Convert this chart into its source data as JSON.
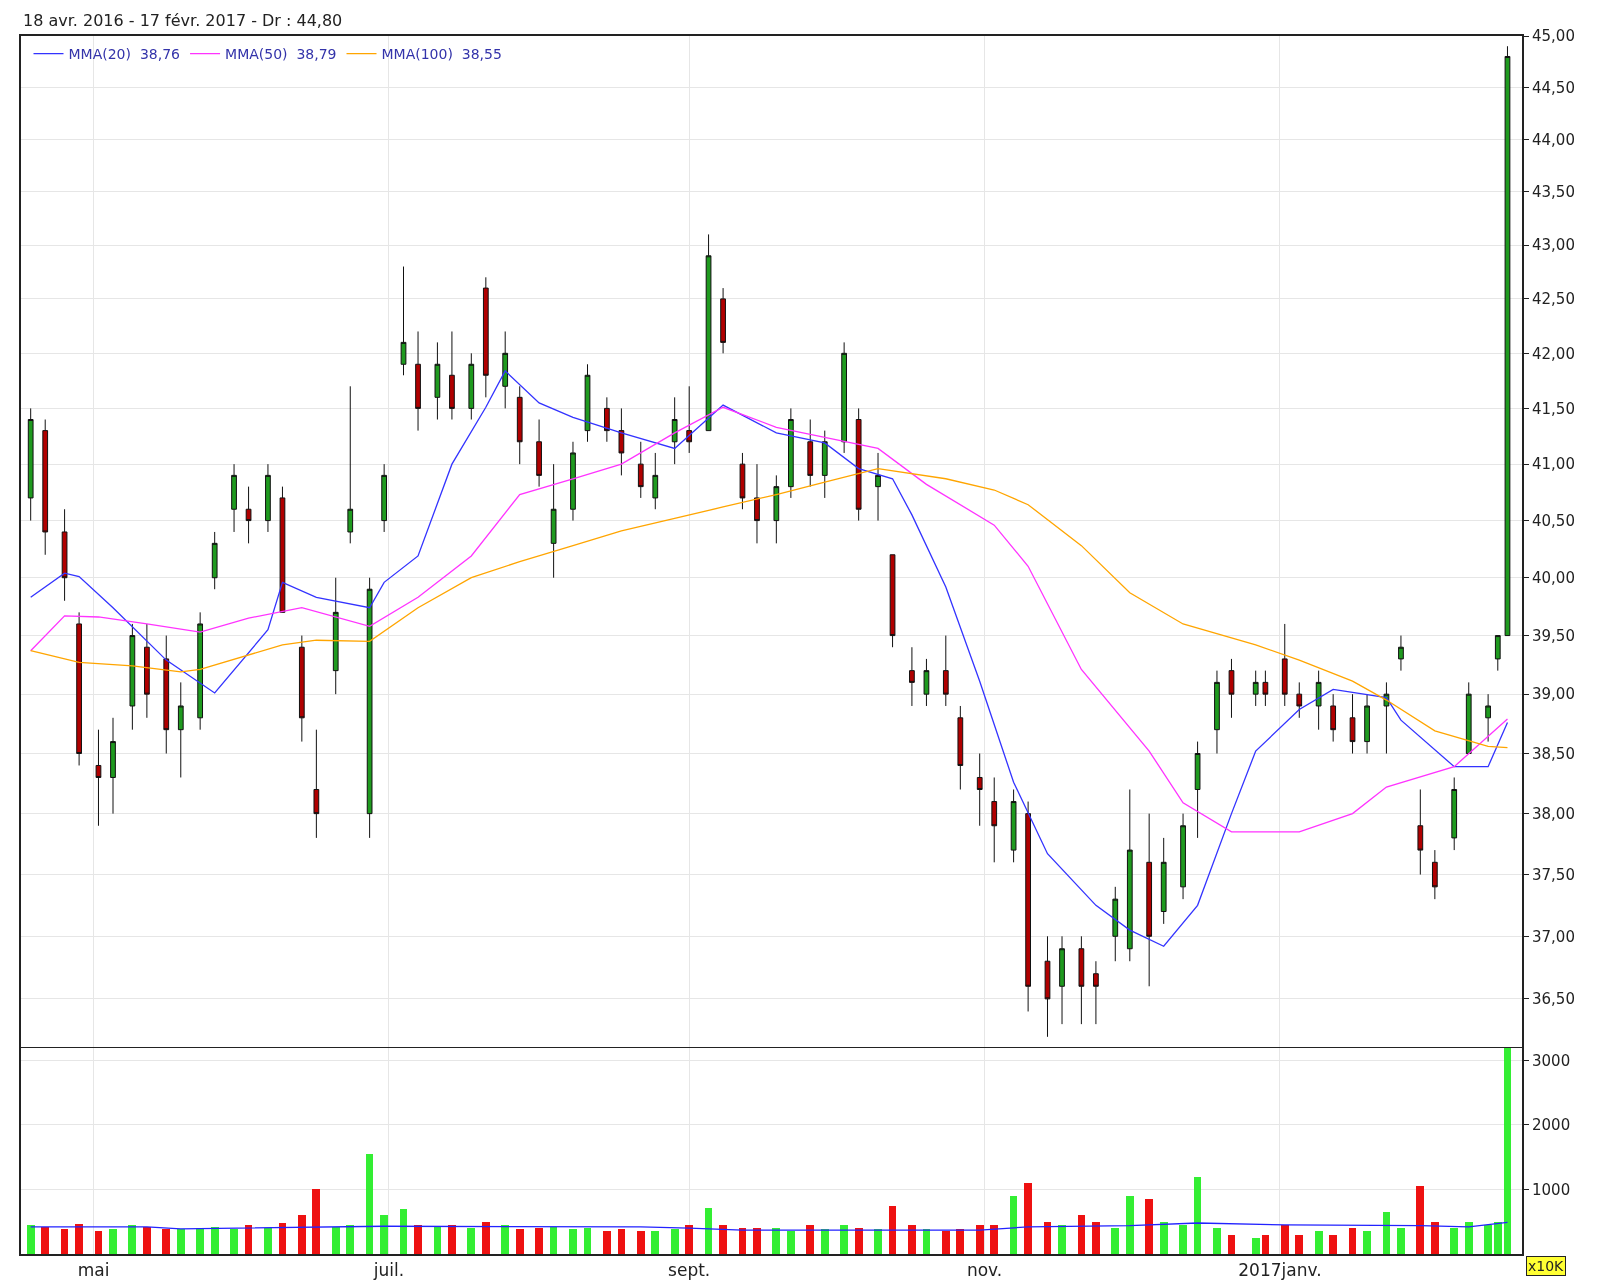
{
  "chart_data": [
    {
      "type": "candlestick",
      "title": "18 avr. 2016 - 17 févr. 2017 - Dr : 44,80",
      "x": [
        "2016-04-18",
        "2016-04-21",
        "2016-04-25",
        "2016-04-28",
        "2016-05-02",
        "2016-05-05",
        "2016-05-09",
        "2016-05-12",
        "2016-05-16",
        "2016-05-19",
        "2016-05-23",
        "2016-05-26",
        "2016-05-30",
        "2016-06-02",
        "2016-06-06",
        "2016-06-09",
        "2016-06-13",
        "2016-06-16",
        "2016-06-20",
        "2016-06-23",
        "2016-06-27",
        "2016-06-30",
        "2016-07-04",
        "2016-07-07",
        "2016-07-11",
        "2016-07-14",
        "2016-07-18",
        "2016-07-21",
        "2016-07-25",
        "2016-07-28",
        "2016-08-01",
        "2016-08-04",
        "2016-08-08",
        "2016-08-11",
        "2016-08-15",
        "2016-08-18",
        "2016-08-22",
        "2016-08-25",
        "2016-08-29",
        "2016-09-01",
        "2016-09-05",
        "2016-09-08",
        "2016-09-12",
        "2016-09-15",
        "2016-09-19",
        "2016-09-22",
        "2016-09-26",
        "2016-09-29",
        "2016-10-03",
        "2016-10-06",
        "2016-10-10",
        "2016-10-13",
        "2016-10-17",
        "2016-10-20",
        "2016-10-24",
        "2016-10-27",
        "2016-10-31",
        "2016-11-03",
        "2016-11-07",
        "2016-11-10",
        "2016-11-14",
        "2016-11-17",
        "2016-11-21",
        "2016-11-24",
        "2016-11-28",
        "2016-12-01",
        "2016-12-05",
        "2016-12-08",
        "2016-12-12",
        "2016-12-15",
        "2016-12-19",
        "2016-12-22",
        "2016-12-27",
        "2016-12-29",
        "2017-01-02",
        "2017-01-05",
        "2017-01-09",
        "2017-01-12",
        "2017-01-16",
        "2017-01-19",
        "2017-01-23",
        "2017-01-26",
        "2017-01-30",
        "2017-02-02",
        "2017-02-06",
        "2017-02-09",
        "2017-02-13",
        "2017-02-15",
        "2017-02-17"
      ],
      "ohlc": [
        [
          40.7,
          41.5,
          40.5,
          41.4
        ],
        [
          41.3,
          41.4,
          40.2,
          40.4
        ],
        [
          40.4,
          40.6,
          39.8,
          40.0
        ],
        [
          39.6,
          39.7,
          38.4,
          38.5
        ],
        [
          38.4,
          38.7,
          37.9,
          38.3
        ],
        [
          38.3,
          38.8,
          38.0,
          38.6
        ],
        [
          38.9,
          39.6,
          38.7,
          39.5
        ],
        [
          39.4,
          39.6,
          38.8,
          39.0
        ],
        [
          39.3,
          39.5,
          38.5,
          38.7
        ],
        [
          38.7,
          39.1,
          38.3,
          38.9
        ],
        [
          38.8,
          39.7,
          38.7,
          39.6
        ],
        [
          40.0,
          40.4,
          39.9,
          40.3
        ],
        [
          40.6,
          41.0,
          40.4,
          40.9
        ],
        [
          40.6,
          40.8,
          40.3,
          40.5
        ],
        [
          40.5,
          41.0,
          40.4,
          40.9
        ],
        [
          40.7,
          40.8,
          39.7,
          39.7
        ],
        [
          39.4,
          39.5,
          38.6,
          38.8
        ],
        [
          38.2,
          38.7,
          37.8,
          38.0
        ],
        [
          39.2,
          40.0,
          39.0,
          39.7
        ],
        [
          40.4,
          41.7,
          40.3,
          40.6
        ],
        [
          38.0,
          40.0,
          37.8,
          39.9
        ],
        [
          40.5,
          41.0,
          40.4,
          40.9
        ],
        [
          41.9,
          42.8,
          41.8,
          42.1
        ],
        [
          41.9,
          42.2,
          41.3,
          41.5
        ],
        [
          41.6,
          42.1,
          41.4,
          41.9
        ],
        [
          41.8,
          42.2,
          41.4,
          41.5
        ],
        [
          41.5,
          42.0,
          41.4,
          41.9
        ],
        [
          42.6,
          42.7,
          41.6,
          41.8
        ],
        [
          41.7,
          42.2,
          41.5,
          42.0
        ],
        [
          41.6,
          41.7,
          41.0,
          41.2
        ],
        [
          41.2,
          41.4,
          40.8,
          40.9
        ],
        [
          40.3,
          41.0,
          40.0,
          40.6
        ],
        [
          40.6,
          41.2,
          40.5,
          41.1
        ],
        [
          41.3,
          41.9,
          41.2,
          41.8
        ],
        [
          41.5,
          41.6,
          41.2,
          41.3
        ],
        [
          41.3,
          41.5,
          40.9,
          41.1
        ],
        [
          41.0,
          41.2,
          40.7,
          40.8
        ],
        [
          40.7,
          41.1,
          40.6,
          40.9
        ],
        [
          41.2,
          41.6,
          41.0,
          41.4
        ],
        [
          41.3,
          41.7,
          41.1,
          41.2
        ],
        [
          41.3,
          43.1,
          41.3,
          42.9
        ],
        [
          42.5,
          42.6,
          42.0,
          42.1
        ],
        [
          41.0,
          41.1,
          40.6,
          40.7
        ],
        [
          40.7,
          41.0,
          40.3,
          40.5
        ],
        [
          40.5,
          40.9,
          40.3,
          40.8
        ],
        [
          40.8,
          41.5,
          40.7,
          41.4
        ],
        [
          41.2,
          41.4,
          40.8,
          40.9
        ],
        [
          40.9,
          41.3,
          40.7,
          41.2
        ],
        [
          41.2,
          42.1,
          41.1,
          42.0
        ],
        [
          41.4,
          41.5,
          40.5,
          40.6
        ],
        [
          40.8,
          41.1,
          40.5,
          40.9
        ],
        [
          40.2,
          40.2,
          39.4,
          39.5
        ],
        [
          39.2,
          39.4,
          38.9,
          39.1
        ],
        [
          39.0,
          39.3,
          38.9,
          39.2
        ],
        [
          39.2,
          39.5,
          38.9,
          39.0
        ],
        [
          38.8,
          38.9,
          38.2,
          38.4
        ],
        [
          38.3,
          38.5,
          37.9,
          38.2
        ],
        [
          38.1,
          38.3,
          37.6,
          37.9
        ],
        [
          37.7,
          38.2,
          37.6,
          38.1
        ],
        [
          38.0,
          38.1,
          36.4,
          36.6
        ],
        [
          36.8,
          37.0,
          36.2,
          36.5
        ],
        [
          36.6,
          37.0,
          36.3,
          36.9
        ],
        [
          36.9,
          37.0,
          36.3,
          36.6
        ],
        [
          36.7,
          36.8,
          36.3,
          36.6
        ],
        [
          37.0,
          37.4,
          36.8,
          37.3
        ],
        [
          36.9,
          38.2,
          36.8,
          37.7
        ],
        [
          37.6,
          38.0,
          36.6,
          37.0
        ],
        [
          37.2,
          37.8,
          37.1,
          37.6
        ],
        [
          37.4,
          38.0,
          37.3,
          37.9
        ],
        [
          38.2,
          38.6,
          37.8,
          38.5
        ],
        [
          38.7,
          39.2,
          38.5,
          39.1
        ],
        [
          39.2,
          39.3,
          38.8,
          39.0
        ],
        [
          39.0,
          39.2,
          38.9,
          39.1
        ],
        [
          39.1,
          39.2,
          38.9,
          39.0
        ],
        [
          39.3,
          39.6,
          38.9,
          39.0
        ],
        [
          39.0,
          39.1,
          38.8,
          38.9
        ],
        [
          38.9,
          39.2,
          38.7,
          39.1
        ],
        [
          38.9,
          39.0,
          38.6,
          38.7
        ],
        [
          38.8,
          39.0,
          38.5,
          38.6
        ],
        [
          38.6,
          39.0,
          38.5,
          38.9
        ],
        [
          38.9,
          39.1,
          38.5,
          39.0
        ],
        [
          39.3,
          39.5,
          39.2,
          39.4
        ],
        [
          37.9,
          38.2,
          37.5,
          37.7
        ],
        [
          37.6,
          37.7,
          37.3,
          37.4
        ],
        [
          37.8,
          38.3,
          37.7,
          38.2
        ],
        [
          38.5,
          39.1,
          38.5,
          39.0
        ],
        [
          38.8,
          39.0,
          38.6,
          38.9
        ],
        [
          39.3,
          39.5,
          39.2,
          39.5
        ],
        [
          39.5,
          44.9,
          39.5,
          44.8
        ]
      ],
      "colors": [
        "#1f9a1f",
        "#b00000",
        "#b00000",
        "#b00000",
        "#b00000",
        "#1f9a1f",
        "#1f9a1f",
        "#b00000",
        "#b00000",
        "#1f9a1f",
        "#1f9a1f",
        "#1f9a1f",
        "#1f9a1f",
        "#b00000",
        "#1f9a1f",
        "#b00000",
        "#b00000",
        "#b00000",
        "#1f9a1f",
        "#1f9a1f",
        "#1f9a1f",
        "#1f9a1f",
        "#1f9a1f",
        "#b00000",
        "#1f9a1f",
        "#b00000",
        "#1f9a1f",
        "#b00000",
        "#1f9a1f",
        "#b00000",
        "#b00000",
        "#1f9a1f",
        "#1f9a1f",
        "#1f9a1f",
        "#b00000",
        "#b00000",
        "#b00000",
        "#1f9a1f",
        "#1f9a1f",
        "#b00000",
        "#1f9a1f",
        "#b00000",
        "#b00000",
        "#b00000",
        "#1f9a1f",
        "#1f9a1f",
        "#b00000",
        "#1f9a1f",
        "#1f9a1f",
        "#b00000",
        "#1f9a1f",
        "#b00000",
        "#b00000",
        "#1f9a1f",
        "#b00000",
        "#b00000",
        "#b00000",
        "#b00000",
        "#1f9a1f",
        "#b00000",
        "#b00000",
        "#1f9a1f",
        "#b00000",
        "#b00000",
        "#1f9a1f",
        "#1f9a1f",
        "#b00000",
        "#1f9a1f",
        "#1f9a1f",
        "#1f9a1f",
        "#1f9a1f",
        "#b00000",
        "#1f9a1f",
        "#b00000",
        "#b00000",
        "#b00000",
        "#1f9a1f",
        "#b00000",
        "#b00000",
        "#1f9a1f",
        "#1f9a1f",
        "#1f9a1f",
        "#b00000",
        "#b00000",
        "#1f9a1f",
        "#1f9a1f",
        "#1f9a1f",
        "#1f9a1f",
        "#1f9a1f"
      ],
      "series": [
        {
          "type": "line",
          "name": "MMA(20)  38,76",
          "color": "#3333ff",
          "x": [
            "2016-04-18",
            "2016-04-25",
            "2016-04-28",
            "2016-05-05",
            "2016-05-16",
            "2016-05-26",
            "2016-06-06",
            "2016-06-09",
            "2016-06-16",
            "2016-06-27",
            "2016-06-30",
            "2016-07-07",
            "2016-07-14",
            "2016-07-21",
            "2016-07-25",
            "2016-08-01",
            "2016-08-08",
            "2016-08-18",
            "2016-08-29",
            "2016-09-08",
            "2016-09-19",
            "2016-09-29",
            "2016-10-06",
            "2016-10-13",
            "2016-10-17",
            "2016-10-24",
            "2016-10-31",
            "2016-11-07",
            "2016-11-14",
            "2016-11-24",
            "2016-12-01",
            "2016-12-08",
            "2016-12-15",
            "2016-12-22",
            "2016-12-27",
            "2017-01-05",
            "2017-01-12",
            "2017-01-23",
            "2017-01-26",
            "2017-02-06",
            "2017-02-13",
            "2017-02-17"
          ],
          "values": [
            39.83,
            40.04,
            40.01,
            39.74,
            39.29,
            39.01,
            39.55,
            39.96,
            39.83,
            39.74,
            39.96,
            40.19,
            41.0,
            41.51,
            41.84,
            41.55,
            41.42,
            41.28,
            41.14,
            41.53,
            41.28,
            41.19,
            40.96,
            40.87,
            40.55,
            39.92,
            39.11,
            38.26,
            37.67,
            37.25,
            37.05,
            36.92,
            37.25,
            38.0,
            38.52,
            38.87,
            39.04,
            38.97,
            38.78,
            38.39,
            38.39,
            38.76
          ]
        },
        {
          "type": "line",
          "name": "MMA(50)  38,79",
          "color": "#ff33ff",
          "x": [
            "2016-04-18",
            "2016-04-25",
            "2016-05-02",
            "2016-05-12",
            "2016-05-23",
            "2016-06-02",
            "2016-06-13",
            "2016-06-27",
            "2016-07-07",
            "2016-07-18",
            "2016-07-28",
            "2016-08-08",
            "2016-08-18",
            "2016-08-29",
            "2016-09-08",
            "2016-09-19",
            "2016-09-29",
            "2016-10-10",
            "2016-10-20",
            "2016-11-03",
            "2016-11-10",
            "2016-11-21",
            "2016-12-05",
            "2016-12-12",
            "2016-12-22",
            "2017-01-05",
            "2017-01-16",
            "2017-01-23",
            "2017-02-06",
            "2017-02-17"
          ],
          "values": [
            39.37,
            39.67,
            39.66,
            39.6,
            39.53,
            39.65,
            39.74,
            39.58,
            39.83,
            40.19,
            40.73,
            40.87,
            41.0,
            41.28,
            41.51,
            41.33,
            41.24,
            41.14,
            40.82,
            40.46,
            40.1,
            39.21,
            38.52,
            38.09,
            37.85,
            37.85,
            38.0,
            38.22,
            38.39,
            38.79
          ]
        },
        {
          "type": "line",
          "name": "MMA(100)  38,55",
          "color": "#ffa500",
          "x": [
            "2016-04-18",
            "2016-04-28",
            "2016-05-09",
            "2016-05-19",
            "2016-05-23",
            "2016-06-09",
            "2016-06-16",
            "2016-06-27",
            "2016-07-07",
            "2016-07-18",
            "2016-07-28",
            "2016-08-08",
            "2016-08-18",
            "2016-08-29",
            "2016-09-08",
            "2016-09-19",
            "2016-09-29",
            "2016-10-10",
            "2016-10-24",
            "2016-11-03",
            "2016-11-10",
            "2016-11-21",
            "2016-12-01",
            "2016-12-12",
            "2016-12-27",
            "2017-01-05",
            "2017-01-16",
            "2017-01-23",
            "2017-02-02",
            "2017-02-13",
            "2017-02-17"
          ],
          "values": [
            39.37,
            39.27,
            39.24,
            39.19,
            39.21,
            39.42,
            39.46,
            39.45,
            39.74,
            40.0,
            40.14,
            40.28,
            40.41,
            40.52,
            40.62,
            40.73,
            40.84,
            40.96,
            40.87,
            40.77,
            40.64,
            40.28,
            39.87,
            39.6,
            39.42,
            39.29,
            39.11,
            38.95,
            38.69,
            38.56,
            38.55
          ]
        }
      ],
      "xlim": [
        "2016-04-16",
        "2017-02-20"
      ],
      "xticks": [
        {
          "value": "2016-05-01",
          "label": null
        },
        {
          "value": "2016-07-01",
          "label": null
        },
        {
          "value": "2016-09-01",
          "label": null
        },
        {
          "value": "2016-11-01",
          "label": null
        },
        {
          "value": "2017-01-01",
          "label": null
        }
      ],
      "ylim": [
        36.12,
        45.0
      ],
      "yticks": [
        {
          "value": 36.5,
          "label": "36,50"
        },
        {
          "value": 37,
          "label": "37,00"
        },
        {
          "value": 37.5,
          "label": "37,50"
        },
        {
          "value": 38,
          "label": "38,00"
        },
        {
          "value": 38.5,
          "label": "38,50"
        },
        {
          "value": 39,
          "label": "39,00"
        },
        {
          "value": 39.5,
          "label": "39,50"
        },
        {
          "value": 40,
          "label": "40,00"
        },
        {
          "value": 40.5,
          "label": "40,50"
        },
        {
          "value": 41,
          "label": "41,00"
        },
        {
          "value": 41.5,
          "label": "41,50"
        },
        {
          "value": 42,
          "label": "42,00"
        },
        {
          "value": 42.5,
          "label": "42,50"
        },
        {
          "value": 43,
          "label": "43,00"
        },
        {
          "value": 43.5,
          "label": "43,50"
        },
        {
          "value": 44,
          "label": "44,00"
        },
        {
          "value": 44.5,
          "label": "44,50"
        },
        {
          "value": 45,
          "label": "45,00"
        }
      ],
      "log": true,
      "grid": true,
      "legend": "top left",
      "tick_labels": "y"
    },
    {
      "type": "bar",
      "annotations": [
        "x10K"
      ],
      "x": [
        "2016-04-18",
        "2016-04-21",
        "2016-04-25",
        "2016-04-28",
        "2016-05-02",
        "2016-05-05",
        "2016-05-09",
        "2016-05-12",
        "2016-05-16",
        "2016-05-19",
        "2016-05-23",
        "2016-05-26",
        "2016-05-30",
        "2016-06-02",
        "2016-06-06",
        "2016-06-09",
        "2016-06-13",
        "2016-06-16",
        "2016-06-20",
        "2016-06-23",
        "2016-06-27",
        "2016-06-30",
        "2016-07-04",
        "2016-07-07",
        "2016-07-11",
        "2016-07-14",
        "2016-07-18",
        "2016-07-21",
        "2016-07-25",
        "2016-07-28",
        "2016-08-01",
        "2016-08-04",
        "2016-08-08",
        "2016-08-11",
        "2016-08-15",
        "2016-08-18",
        "2016-08-22",
        "2016-08-25",
        "2016-08-29",
        "2016-09-01",
        "2016-09-05",
        "2016-09-08",
        "2016-09-12",
        "2016-09-15",
        "2016-09-19",
        "2016-09-22",
        "2016-09-26",
        "2016-09-29",
        "2016-10-03",
        "2016-10-06",
        "2016-10-10",
        "2016-10-13",
        "2016-10-17",
        "2016-10-20",
        "2016-10-24",
        "2016-10-27",
        "2016-10-31",
        "2016-11-03",
        "2016-11-07",
        "2016-11-10",
        "2016-11-14",
        "2016-11-17",
        "2016-11-21",
        "2016-11-24",
        "2016-11-28",
        "2016-12-01",
        "2016-12-05",
        "2016-12-08",
        "2016-12-12",
        "2016-12-15",
        "2016-12-19",
        "2016-12-22",
        "2016-12-27",
        "2016-12-29",
        "2017-01-02",
        "2017-01-05",
        "2017-01-09",
        "2017-01-12",
        "2017-01-16",
        "2017-01-19",
        "2017-01-23",
        "2017-01-26",
        "2017-01-30",
        "2017-02-02",
        "2017-02-06",
        "2017-02-09",
        "2017-02-13",
        "2017-02-15",
        "2017-02-17"
      ],
      "series": [
        {
          "type": "bar",
          "values": [
            450,
            420,
            380,
            470,
            360,
            380,
            450,
            420,
            380,
            390,
            400,
            420,
            380,
            450,
            400,
            480,
            600,
            1000,
            420,
            450,
            1550,
            600,
            700,
            450,
            420,
            450,
            400,
            500,
            450,
            380,
            400,
            420,
            380,
            400,
            350,
            380,
            350,
            350,
            380,
            450,
            720,
            450,
            400,
            400,
            400,
            350,
            450,
            380,
            450,
            400,
            380,
            750,
            450,
            380,
            350,
            380,
            450,
            450,
            900,
            1100,
            500,
            450,
            600,
            500,
            400,
            900,
            850,
            500,
            450,
            1200,
            400,
            300,
            250,
            300,
            450,
            300,
            350,
            300,
            400,
            350,
            650,
            400,
            1050,
            500,
            400,
            500,
            450,
            500,
            3190
          ],
          "colors": [
            "#33ee33",
            "#ee1111",
            "#ee1111",
            "#ee1111",
            "#ee1111",
            "#33ee33",
            "#33ee33",
            "#ee1111",
            "#ee1111",
            "#33ee33",
            "#33ee33",
            "#33ee33",
            "#33ee33",
            "#ee1111",
            "#33ee33",
            "#ee1111",
            "#ee1111",
            "#ee1111",
            "#33ee33",
            "#33ee33",
            "#33ee33",
            "#33ee33",
            "#33ee33",
            "#ee1111",
            "#33ee33",
            "#ee1111",
            "#33ee33",
            "#ee1111",
            "#33ee33",
            "#ee1111",
            "#ee1111",
            "#33ee33",
            "#33ee33",
            "#33ee33",
            "#ee1111",
            "#ee1111",
            "#ee1111",
            "#33ee33",
            "#33ee33",
            "#ee1111",
            "#33ee33",
            "#ee1111",
            "#ee1111",
            "#ee1111",
            "#33ee33",
            "#33ee33",
            "#ee1111",
            "#33ee33",
            "#33ee33",
            "#ee1111",
            "#33ee33",
            "#ee1111",
            "#ee1111",
            "#33ee33",
            "#ee1111",
            "#ee1111",
            "#ee1111",
            "#ee1111",
            "#33ee33",
            "#ee1111",
            "#ee1111",
            "#33ee33",
            "#ee1111",
            "#ee1111",
            "#33ee33",
            "#33ee33",
            "#ee1111",
            "#33ee33",
            "#33ee33",
            "#33ee33",
            "#33ee33",
            "#ee1111",
            "#33ee33",
            "#ee1111",
            "#ee1111",
            "#ee1111",
            "#33ee33",
            "#ee1111",
            "#ee1111",
            "#33ee33",
            "#33ee33",
            "#33ee33",
            "#ee1111",
            "#ee1111",
            "#33ee33",
            "#33ee33",
            "#33ee33",
            "#33ee33",
            "#33ee33"
          ]
        },
        {
          "type": "line",
          "color": "#2222ff",
          "x": [
            "2016-04-18",
            "2016-05-12",
            "2016-05-19",
            "2016-06-30",
            "2016-08-22",
            "2016-09-01",
            "2016-09-12",
            "2016-10-31",
            "2016-11-10",
            "2016-12-01",
            "2016-12-15",
            "2017-01-02",
            "2017-01-30",
            "2017-02-09",
            "2017-02-17"
          ],
          "values": [
            420,
            420,
            390,
            430,
            420,
            400,
            370,
            370,
            420,
            440,
            480,
            450,
            440,
            420,
            490
          ]
        }
      ],
      "xlim": [
        "2016-04-16",
        "2017-02-20"
      ],
      "xticks": [
        {
          "value": "2016-05-01",
          "label": "mai"
        },
        {
          "value": "2016-07-01",
          "label": "juil."
        },
        {
          "value": "2016-09-01",
          "label": "sept."
        },
        {
          "value": "2016-11-01",
          "label": "nov."
        },
        {
          "value": "2017-01-01",
          "label": "2017janv."
        }
      ],
      "ylim": [
        0,
        3190
      ],
      "yticks": [
        1000,
        2000,
        3000
      ],
      "grid": true
    }
  ]
}
